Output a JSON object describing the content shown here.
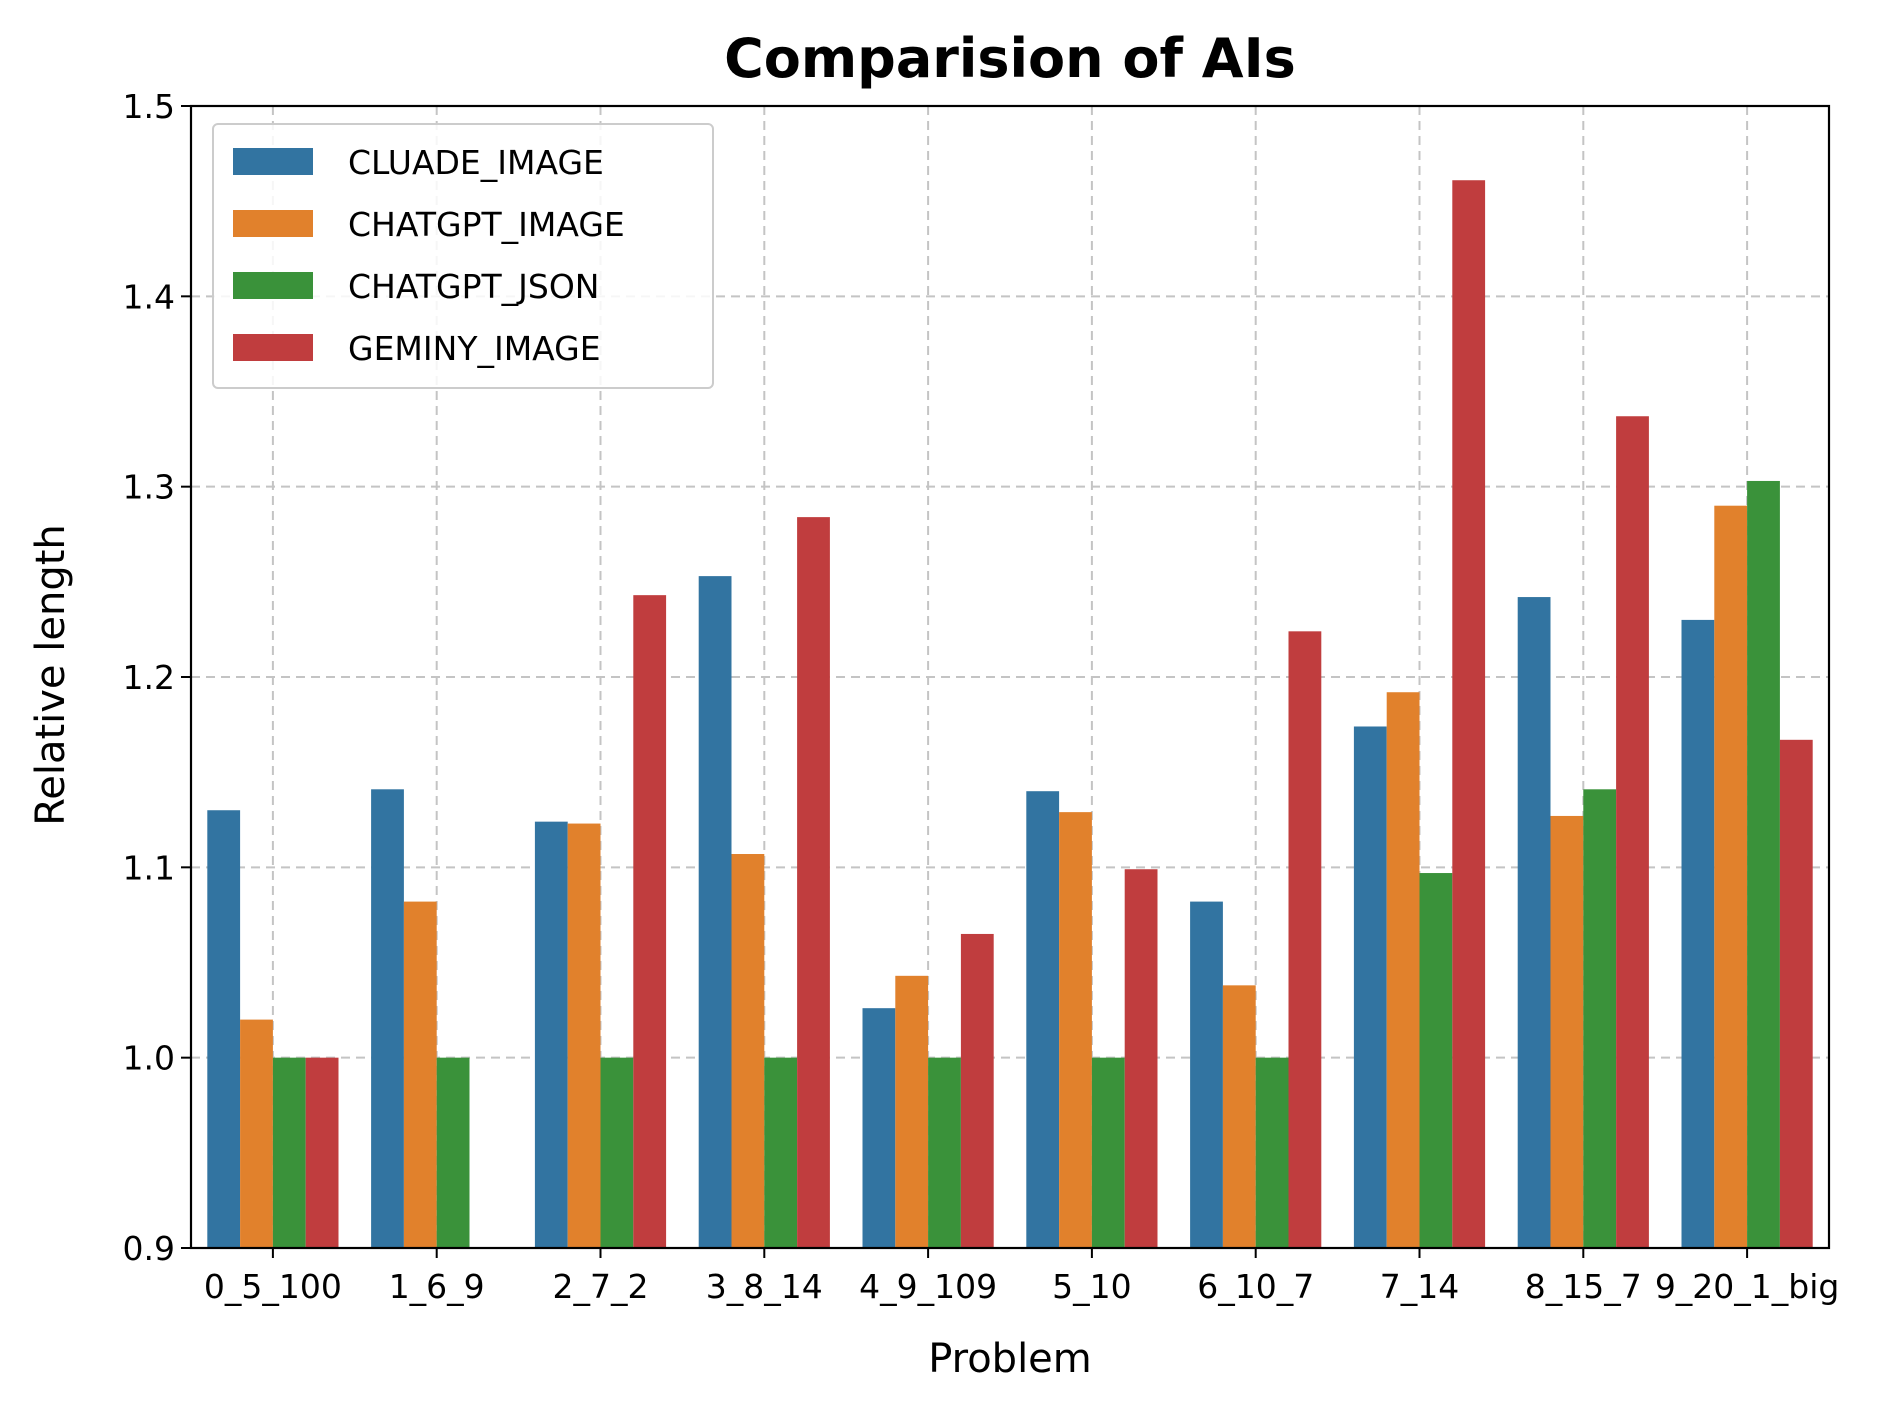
{
  "chart_data": {
    "type": "bar",
    "title": "Comparision of AIs",
    "xlabel": "Problem",
    "ylabel": "Relative length",
    "ylim": [
      0.9,
      1.5
    ],
    "yticks": [
      "0.9",
      "1.0",
      "1.1",
      "1.2",
      "1.3",
      "1.4",
      "1.5"
    ],
    "grid": true,
    "legend_position": "top-left",
    "categories": [
      "0_5_100",
      "1_6_9",
      "2_7_2",
      "3_8_14",
      "4_9_109",
      "5_10",
      "6_10_7",
      "7_14",
      "8_15_7",
      "9_20_1_big"
    ],
    "series": [
      {
        "name": "CLUADE_IMAGE",
        "color": "#3274a1",
        "values": [
          1.13,
          1.141,
          1.124,
          1.253,
          1.026,
          1.14,
          1.082,
          1.174,
          1.242,
          1.23
        ]
      },
      {
        "name": "CHATGPT_IMAGE",
        "color": "#e1812c",
        "values": [
          1.02,
          1.082,
          1.123,
          1.107,
          1.043,
          1.129,
          1.038,
          1.192,
          1.127,
          1.29
        ]
      },
      {
        "name": "CHATGPT_JSON",
        "color": "#3a923a",
        "values": [
          1.0,
          1.0,
          1.0,
          1.0,
          1.0,
          1.0,
          1.0,
          1.097,
          1.141,
          1.303
        ]
      },
      {
        "name": "GEMINY_IMAGE",
        "color": "#c03d3e",
        "values": [
          1.0,
          null,
          1.243,
          1.284,
          1.065,
          1.099,
          1.224,
          1.461,
          1.337,
          1.167
        ]
      }
    ]
  }
}
